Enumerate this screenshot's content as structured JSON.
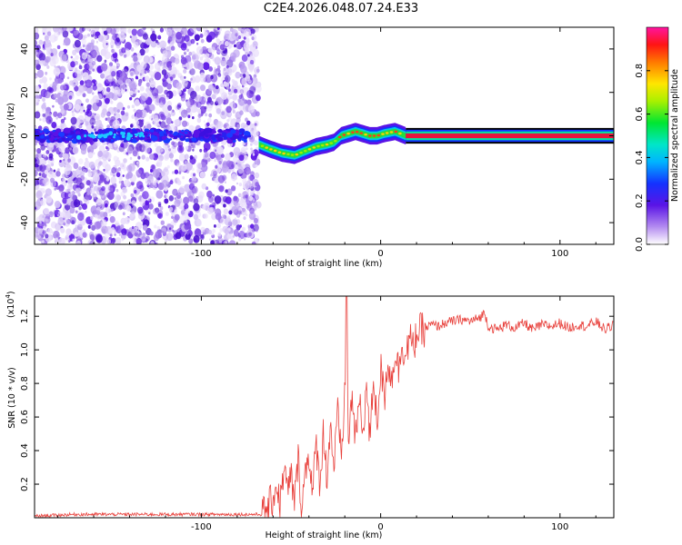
{
  "page": {
    "title": "C2E4.2026.048.07.24.E33"
  },
  "chart_data": [
    {
      "type": "heatmap",
      "name": "spectrogram",
      "xlabel": "Height of straight line (km)",
      "ylabel": "Frequency (Hz)",
      "xlim": [
        -193,
        130
      ],
      "ylim": [
        -50,
        50
      ],
      "xticks": [
        -100,
        0,
        100
      ],
      "xtick_labels": [
        "-100",
        "0",
        "100"
      ],
      "yticks": [
        -40,
        -20,
        0,
        20,
        40
      ],
      "ytick_labels": [
        "-40",
        "-20",
        "0",
        "20",
        "40"
      ],
      "noise_region_x": [
        -193,
        -68
      ],
      "signal_centerline": [
        {
          "x": -68,
          "f": -4
        },
        {
          "x": -62,
          "f": -6
        },
        {
          "x": -55,
          "f": -8
        },
        {
          "x": -48,
          "f": -9
        },
        {
          "x": -42,
          "f": -7
        },
        {
          "x": -36,
          "f": -5
        },
        {
          "x": -30,
          "f": -4
        },
        {
          "x": -26,
          "f": -3
        },
        {
          "x": -22,
          "f": 0
        },
        {
          "x": -18,
          "f": 1
        },
        {
          "x": -14,
          "f": 2
        },
        {
          "x": -10,
          "f": 1
        },
        {
          "x": -6,
          "f": 0
        },
        {
          "x": -2,
          "f": 0
        },
        {
          "x": 2,
          "f": 1
        },
        {
          "x": 8,
          "f": 2
        },
        {
          "x": 14,
          "f": 0
        },
        {
          "x": 130,
          "f": 0
        }
      ],
      "colorbar": {
        "label": "Normalized spectral amplitude",
        "range": [
          0,
          1
        ],
        "ticks": [
          0.0,
          0.2,
          0.4,
          0.6,
          0.8
        ],
        "tick_labels": [
          "0.0",
          "0.2",
          "0.4",
          "0.6",
          "0.8"
        ]
      }
    },
    {
      "type": "line",
      "name": "snr",
      "xlabel": "Height of straight line (km)",
      "ylabel": "SNR (10 * v/v)",
      "exponent_label": "(x10",
      "exponent_power": "4",
      "exponent_close": ")",
      "xlim": [
        -193,
        130
      ],
      "ylim": [
        0,
        1.32
      ],
      "xticks": [
        -100,
        0,
        100
      ],
      "xtick_labels": [
        "-100",
        "0",
        "100"
      ],
      "yticks": [
        0.2,
        0.4,
        0.6,
        0.8,
        1.0,
        1.2
      ],
      "ytick_labels": [
        "0.2",
        "0.4",
        "0.6",
        "0.8",
        "1.0",
        "1.2"
      ],
      "series": [
        {
          "name": "SNR",
          "color": "#e8413c",
          "x": [
            -193,
            -170,
            -150,
            -130,
            -110,
            -90,
            -75,
            -66,
            -63,
            -60,
            -58,
            -56,
            -54,
            -52,
            -50,
            -48,
            -46,
            -44,
            -42,
            -40,
            -38,
            -36,
            -34,
            -32,
            -30,
            -28,
            -26,
            -24,
            -22,
            -20,
            -19,
            -18,
            -16,
            -14,
            -12,
            -10,
            -8,
            -6,
            -4,
            -2,
            0,
            2,
            4,
            6,
            8,
            10,
            12,
            14,
            16,
            18,
            20,
            24,
            28,
            32,
            36,
            40,
            45,
            50,
            55,
            58,
            60,
            65,
            70,
            75,
            80,
            85,
            90,
            95,
            100,
            105,
            110,
            115,
            120,
            125,
            130
          ],
          "y": [
            0.01,
            0.02,
            0.02,
            0.02,
            0.02,
            0.02,
            0.02,
            0.02,
            0.05,
            0.12,
            0.2,
            0.08,
            0.3,
            0.15,
            0.25,
            0.1,
            0.35,
            0.05,
            0.28,
            0.4,
            0.12,
            0.45,
            0.2,
            0.5,
            0.25,
            0.55,
            0.3,
            0.62,
            0.35,
            0.72,
            1.32,
            0.4,
            0.75,
            0.45,
            0.7,
            0.5,
            0.8,
            0.45,
            0.85,
            0.55,
            0.9,
            0.7,
            0.95,
            0.8,
            1.0,
            0.88,
            1.05,
            0.95,
            1.08,
            1.0,
            1.1,
            1.12,
            1.15,
            1.14,
            1.16,
            1.17,
            1.18,
            1.17,
            1.19,
            1.22,
            1.14,
            1.12,
            1.15,
            1.13,
            1.16,
            1.12,
            1.15,
            1.14,
            1.16,
            1.13,
            1.15,
            1.14,
            1.17,
            1.12,
            1.15
          ]
        }
      ]
    }
  ]
}
